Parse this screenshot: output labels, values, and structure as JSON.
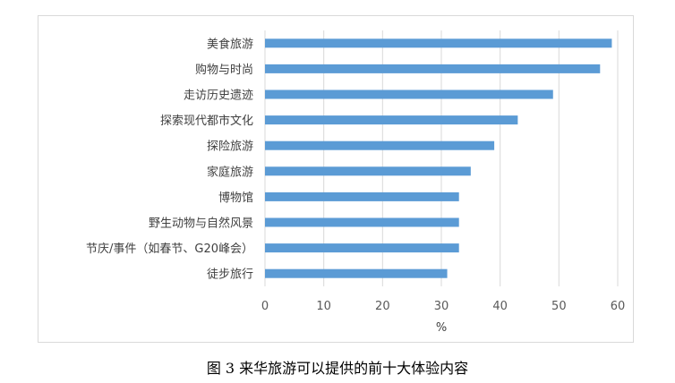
{
  "caption": "图 3  来华旅游可以提供的前十大体验内容",
  "chart_data": {
    "type": "bar",
    "orientation": "horizontal",
    "categories": [
      "美食旅游",
      "购物与时尚",
      "走访历史遗迹",
      "探索现代都市文化",
      "探险旅游",
      "家庭旅游",
      "博物馆",
      "野生动物与自然风景",
      "节庆/事件（如春节、G20峰会）",
      "徒步旅行"
    ],
    "values": [
      59,
      57,
      49,
      43,
      39,
      35,
      33,
      33,
      33,
      31
    ],
    "xlabel": "%",
    "xlim": [
      0,
      60
    ],
    "xticks": [
      0,
      10,
      20,
      30,
      40,
      50,
      60
    ],
    "grid": true,
    "bar_color": "#5b9bd5",
    "grid_color": "#d9d9d9"
  }
}
